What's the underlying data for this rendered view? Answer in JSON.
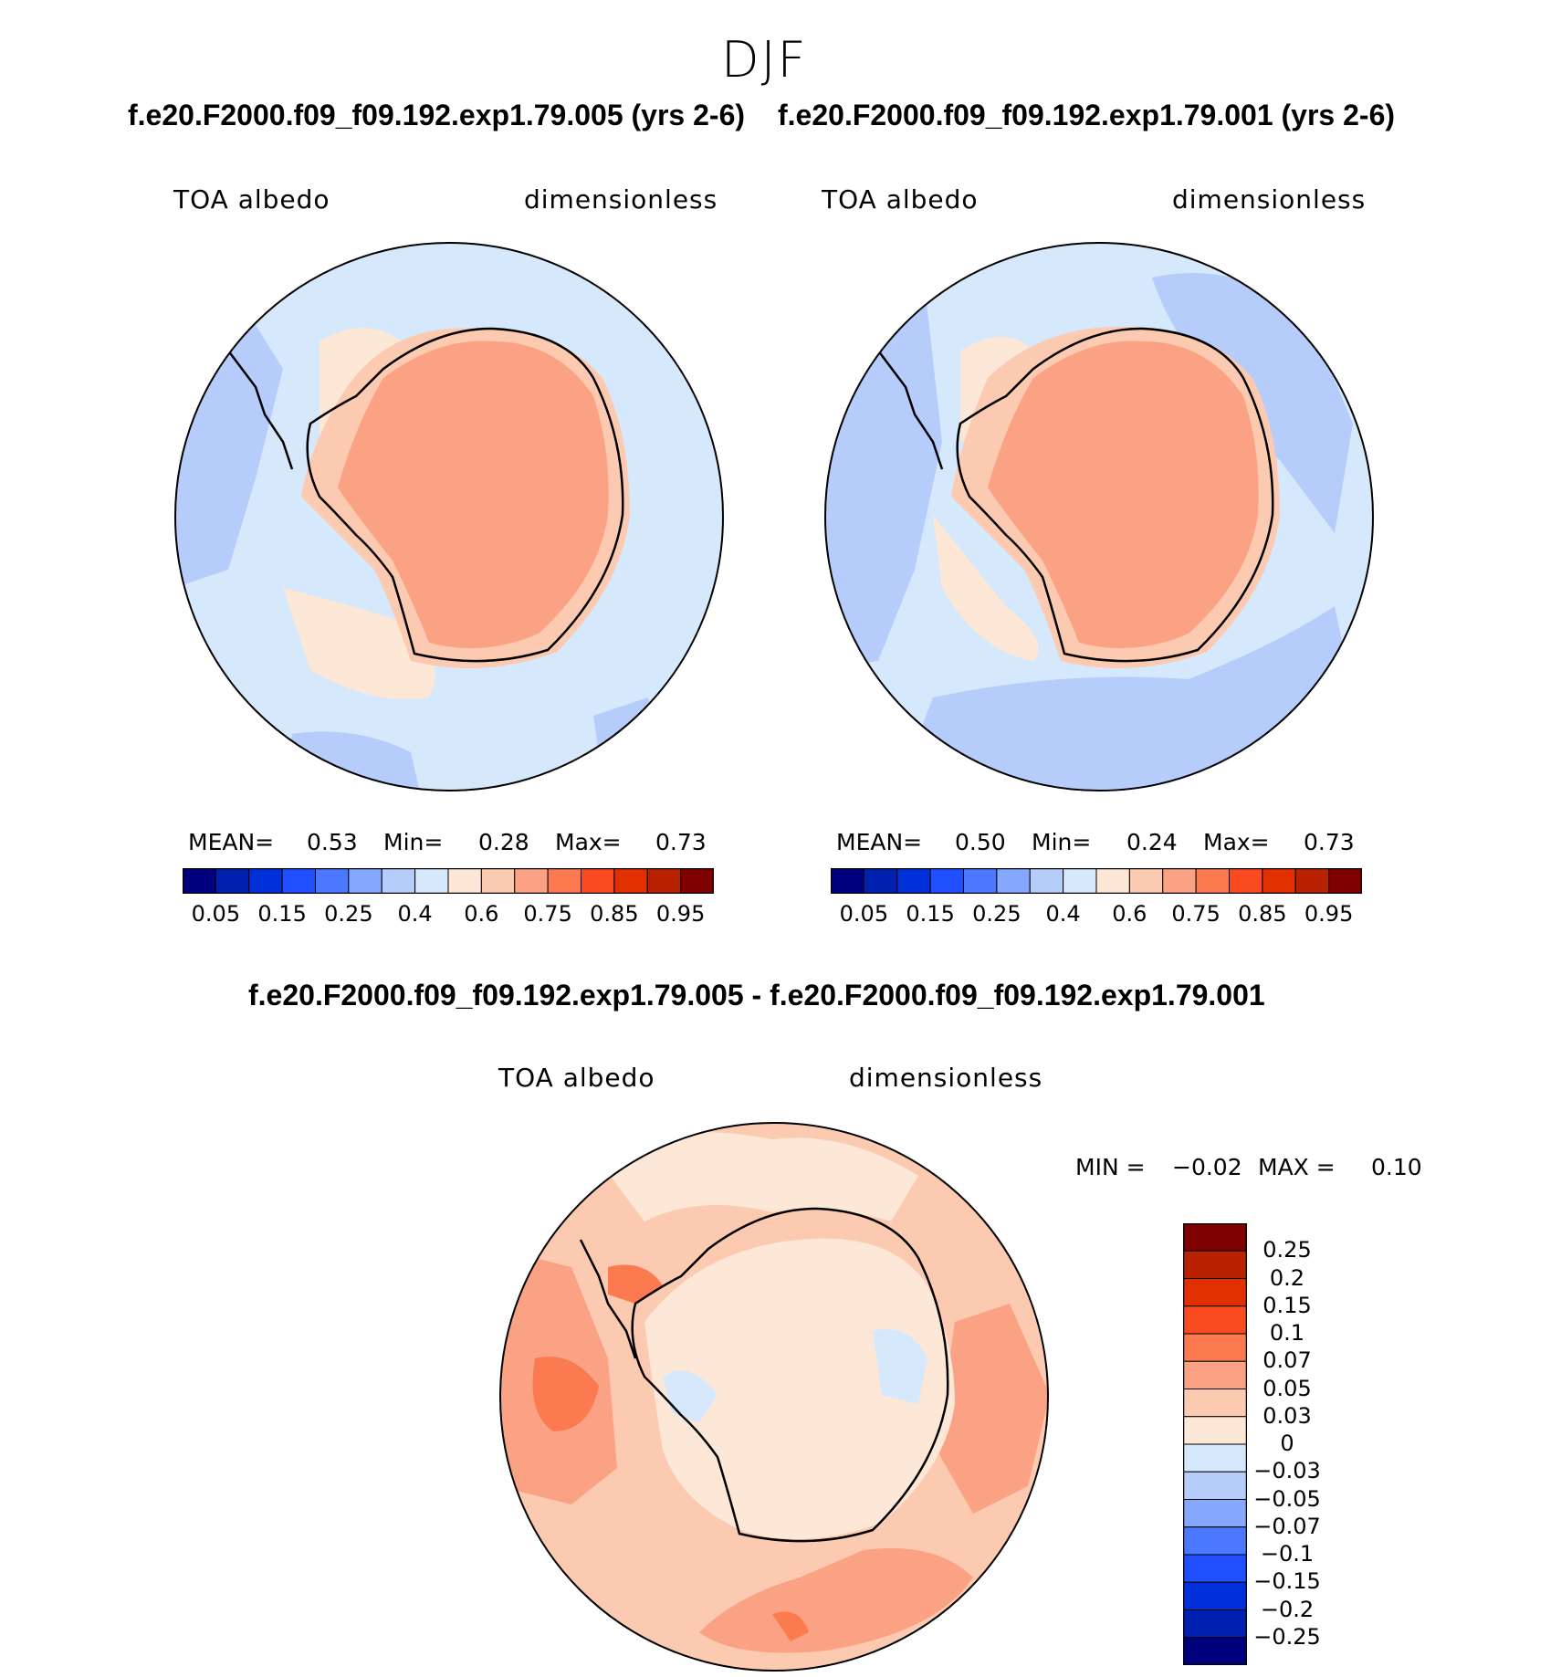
{
  "season": "DJF",
  "panel_left": {
    "title": "f.e20.F2000.f09_f09.192.exp1.79.005 (yrs 2-6)",
    "var_label": "TOA albedo",
    "units": "dimensionless",
    "stats": {
      "mean_label": "MEAN=",
      "mean": "0.53",
      "min_label": "Min=",
      "min": "0.28",
      "max_label": "Max=",
      "max": "0.73"
    }
  },
  "panel_right": {
    "title": "f.e20.F2000.f09_f09.192.exp1.79.001 (yrs 2-6)",
    "var_label": "TOA albedo",
    "units": "dimensionless",
    "stats": {
      "mean_label": "MEAN=",
      "mean": "0.50",
      "min_label": "Min=",
      "min": "0.24",
      "max_label": "Max=",
      "max": "0.73"
    }
  },
  "colorbar_abs": {
    "colors": [
      "#00007f",
      "#0020b0",
      "#0030d8",
      "#1f4fff",
      "#4a78ff",
      "#85a8ff",
      "#b6cdfb",
      "#d6e8fc",
      "#fde7d6",
      "#fccab0",
      "#fba284",
      "#fb7a50",
      "#fa4b20",
      "#e03000",
      "#b82200",
      "#7f0000"
    ],
    "labels": [
      "0.05",
      "0.15",
      "0.25",
      "0.4",
      "0.6",
      "0.75",
      "0.85",
      "0.95"
    ]
  },
  "panel_diff": {
    "title": "f.e20.F2000.f09_f09.192.exp1.79.005 - f.e20.F2000.f09_f09.192.exp1.79.001",
    "var_label": "TOA albedo",
    "units": "dimensionless",
    "min_label": "MIN =",
    "min": "−0.02",
    "max_label": "MAX =",
    "max": "0.10"
  },
  "colorbar_diff": {
    "colors": [
      "#7f0000",
      "#b82200",
      "#e03000",
      "#fa4b20",
      "#fb7a50",
      "#fba284",
      "#fccab0",
      "#fde7d6",
      "#d6e8fc",
      "#b6cdfb",
      "#85a8ff",
      "#4a78ff",
      "#1f4fff",
      "#0030d8",
      "#0020b0",
      "#00007f"
    ],
    "labels": [
      "0.25",
      "0.2",
      "0.15",
      "0.1",
      "0.07",
      "0.05",
      "0.03",
      "0",
      "−0.03",
      "−0.05",
      "−0.07",
      "−0.1",
      "−0.15",
      "−0.2",
      "−0.25"
    ]
  }
}
